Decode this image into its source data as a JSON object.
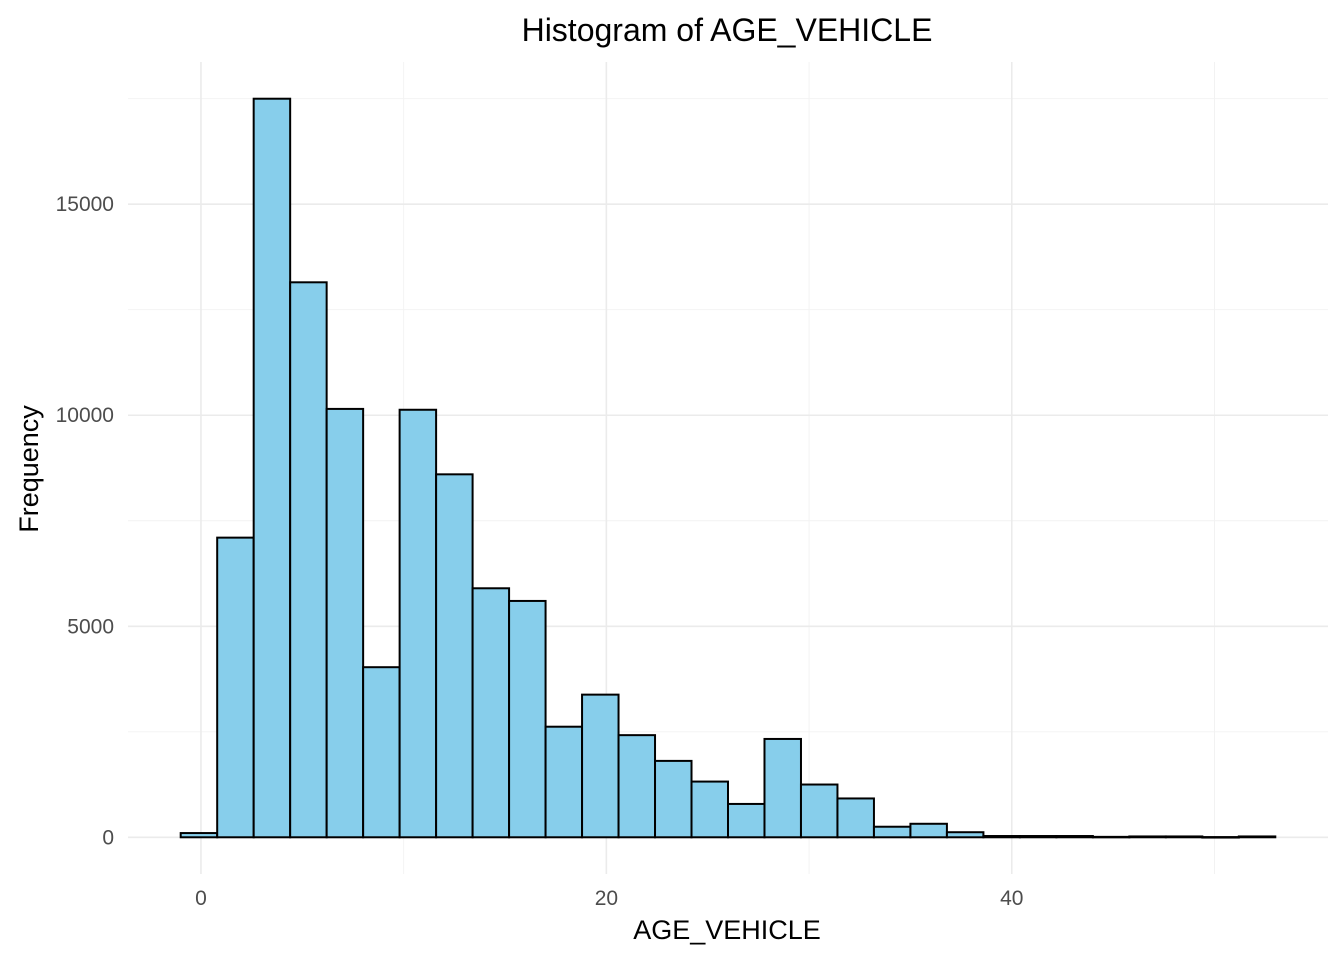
{
  "chart_data": {
    "type": "bar",
    "title": "Histogram of AGE_VEHICLE",
    "xlabel": "AGE_VEHICLE",
    "ylabel": "Frequency",
    "bin_width": 1.8,
    "bins": [
      {
        "start": -1.0,
        "end": 0.8,
        "count": 100
      },
      {
        "start": 0.8,
        "end": 2.6,
        "count": 7100
      },
      {
        "start": 2.6,
        "end": 4.4,
        "count": 17500
      },
      {
        "start": 4.4,
        "end": 6.2,
        "count": 13150
      },
      {
        "start": 6.2,
        "end": 8.0,
        "count": 10150
      },
      {
        "start": 8.0,
        "end": 9.8,
        "count": 4030
      },
      {
        "start": 9.8,
        "end": 11.6,
        "count": 10130
      },
      {
        "start": 11.6,
        "end": 13.4,
        "count": 8600
      },
      {
        "start": 13.4,
        "end": 15.2,
        "count": 5900
      },
      {
        "start": 15.2,
        "end": 17.0,
        "count": 5600
      },
      {
        "start": 17.0,
        "end": 18.8,
        "count": 2620
      },
      {
        "start": 18.8,
        "end": 20.6,
        "count": 3380
      },
      {
        "start": 20.6,
        "end": 22.4,
        "count": 2420
      },
      {
        "start": 22.4,
        "end": 24.2,
        "count": 1810
      },
      {
        "start": 24.2,
        "end": 26.0,
        "count": 1320
      },
      {
        "start": 26.0,
        "end": 27.8,
        "count": 790
      },
      {
        "start": 27.8,
        "end": 29.6,
        "count": 2330
      },
      {
        "start": 29.6,
        "end": 31.4,
        "count": 1250
      },
      {
        "start": 31.4,
        "end": 33.2,
        "count": 920
      },
      {
        "start": 33.2,
        "end": 35.0,
        "count": 250
      },
      {
        "start": 35.0,
        "end": 36.8,
        "count": 320
      },
      {
        "start": 36.8,
        "end": 38.6,
        "count": 120
      },
      {
        "start": 38.6,
        "end": 40.4,
        "count": 30
      },
      {
        "start": 40.4,
        "end": 42.2,
        "count": 30
      },
      {
        "start": 42.2,
        "end": 44.0,
        "count": 30
      },
      {
        "start": 44.0,
        "end": 45.8,
        "count": 10
      },
      {
        "start": 45.8,
        "end": 47.6,
        "count": 20
      },
      {
        "start": 47.6,
        "end": 49.4,
        "count": 20
      },
      {
        "start": 49.4,
        "end": 51.2,
        "count": 5
      },
      {
        "start": 51.2,
        "end": 53.0,
        "count": 20
      }
    ],
    "xlim": [
      -3.6,
      55.6
    ],
    "ylim": [
      -870,
      18370
    ],
    "x_ticks": [
      0,
      20,
      40
    ],
    "y_ticks": [
      0,
      5000,
      10000,
      15000
    ],
    "grid": true,
    "colors": {
      "bar_fill": "#87ceeb",
      "bar_outline": "#000000",
      "grid": "#ebebeb",
      "tick_text": "#4d4d4d"
    }
  }
}
